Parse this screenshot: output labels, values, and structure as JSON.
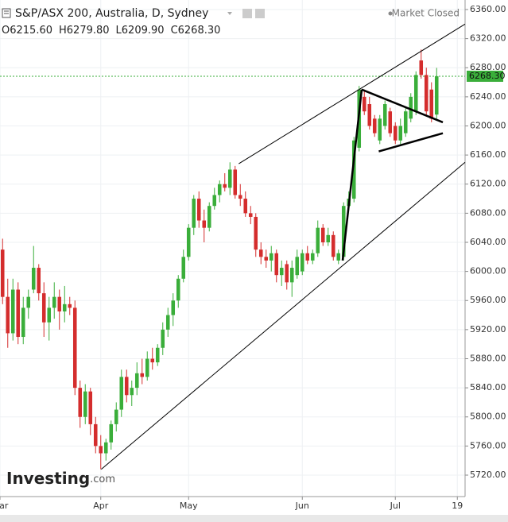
{
  "chart_data": {
    "type": "candlestick",
    "title": "S&P/ASX 200, Australia, D, Sydney",
    "status": "Market Closed",
    "ohlc_labels": [
      "O6215.60",
      "H6279.80",
      "L6209.90",
      "C6268.30"
    ],
    "logo": {
      "brand": "Investing",
      "suffix": ".com"
    },
    "up_color": "#3aae3a",
    "down_color": "#d42d2d",
    "grid": true,
    "xlim": [
      -0.5,
      89.5
    ],
    "xticks": [
      {
        "value": -0.5,
        "label": "Mar"
      },
      {
        "value": 19,
        "label": "Apr"
      },
      {
        "value": 36,
        "label": "May"
      },
      {
        "value": 58,
        "label": "Jun"
      },
      {
        "value": 76,
        "label": "Jul"
      },
      {
        "value": 88,
        "label": "19"
      }
    ],
    "ylim": [
      5690.5,
      6373.1
    ],
    "yticks": [
      {
        "value": 5720,
        "label": "5720.00"
      },
      {
        "value": 5760,
        "label": "5760.00"
      },
      {
        "value": 5800,
        "label": "5800.00"
      },
      {
        "value": 5840,
        "label": "5840.00"
      },
      {
        "value": 5880,
        "label": "5880.00"
      },
      {
        "value": 5920,
        "label": "5920.00"
      },
      {
        "value": 5960,
        "label": "5960.00"
      },
      {
        "value": 6000,
        "label": "6000.00"
      },
      {
        "value": 6040,
        "label": "6040.00"
      },
      {
        "value": 6080,
        "label": "6080.00"
      },
      {
        "value": 6120,
        "label": "6120.00"
      },
      {
        "value": 6160,
        "label": "6160.00"
      },
      {
        "value": 6200,
        "label": "6200.00"
      },
      {
        "value": 6240,
        "label": "6240.00"
      },
      {
        "value": 6280,
        "label": "6280.00"
      },
      {
        "value": 6320,
        "label": "6320.00"
      },
      {
        "value": 6360,
        "label": "6360.00"
      }
    ],
    "ohlc": {
      "open": [
        6030,
        5965,
        5915,
        5975,
        5910,
        5950,
        5975,
        6005,
        5970,
        5930,
        5950,
        5965,
        5945,
        5955,
        5950,
        5840,
        5800,
        5835,
        5790,
        5760,
        5750,
        5765,
        5790,
        5810,
        5855,
        5830,
        5840,
        5860,
        5855,
        5880,
        5875,
        5895,
        5920,
        5940,
        5960,
        5990,
        6020,
        6060,
        6100,
        6070,
        6060,
        6090,
        6105,
        6120,
        6115,
        6140,
        6105,
        6100,
        6080,
        6075,
        6030,
        6020,
        6015,
        6025,
        5995,
        6010,
        5985,
        5995,
        6000,
        6025,
        6015,
        6025,
        6060,
        6040,
        6050,
        6015,
        6020,
        6090,
        6100,
        6170,
        6240,
        6230,
        6210,
        6180,
        6200,
        6220,
        6200,
        6180,
        6190,
        6210,
        6220,
        6290,
        6270,
        6250,
        6215.6
      ],
      "high": [
        6045,
        5990,
        5990,
        5985,
        5965,
        5975,
        6035,
        6010,
        5985,
        5965,
        5985,
        5975,
        5980,
        5965,
        5960,
        5850,
        5845,
        5840,
        5800,
        5775,
        5770,
        5795,
        5820,
        5865,
        5865,
        5850,
        5875,
        5880,
        5890,
        5895,
        5900,
        5930,
        5950,
        5970,
        5995,
        6030,
        6065,
        6105,
        6110,
        6085,
        6095,
        6115,
        6125,
        6135,
        6150,
        6145,
        6120,
        6110,
        6090,
        6080,
        6040,
        6030,
        6035,
        6030,
        6015,
        6015,
        6015,
        6030,
        6030,
        6035,
        6030,
        6070,
        6065,
        6060,
        6055,
        6030,
        6095,
        6110,
        6185,
        6255,
        6250,
        6240,
        6215,
        6215,
        6235,
        6225,
        6205,
        6210,
        6225,
        6245,
        6275,
        6305,
        6280,
        6260,
        6279.8
      ],
      "low": [
        5955,
        5895,
        5905,
        5900,
        5900,
        5935,
        5970,
        5960,
        5910,
        5905,
        5935,
        5920,
        5930,
        5940,
        5830,
        5785,
        5790,
        5775,
        5750,
        5728,
        5740,
        5755,
        5780,
        5800,
        5820,
        5815,
        5830,
        5845,
        5850,
        5865,
        5870,
        5885,
        5910,
        5925,
        5950,
        5985,
        6015,
        6050,
        6060,
        6040,
        6055,
        6085,
        6095,
        6110,
        6105,
        6100,
        6090,
        6075,
        6065,
        6020,
        6010,
        6005,
        6000,
        5985,
        5980,
        5975,
        5965,
        5990,
        5995,
        6010,
        6010,
        6020,
        6035,
        6035,
        6015,
        6010,
        6015,
        6085,
        6095,
        6165,
        6215,
        6195,
        6185,
        6175,
        6195,
        6185,
        6175,
        6175,
        6185,
        6205,
        6215,
        6265,
        6215,
        6205,
        6209.9
      ],
      "close": [
        5965,
        5915,
        5975,
        5910,
        5950,
        5965,
        6005,
        5970,
        5930,
        5950,
        5965,
        5945,
        5955,
        5950,
        5840,
        5800,
        5835,
        5790,
        5760,
        5750,
        5765,
        5790,
        5810,
        5855,
        5830,
        5840,
        5860,
        5855,
        5880,
        5875,
        5895,
        5920,
        5940,
        5960,
        5990,
        6020,
        6060,
        6100,
        6070,
        6060,
        6090,
        6105,
        6120,
        6115,
        6140,
        6105,
        6100,
        6080,
        6075,
        6030,
        6020,
        6015,
        6025,
        5995,
        6005,
        5985,
        6005,
        6020,
        6025,
        6015,
        6025,
        6060,
        6040,
        6050,
        6020,
        6025,
        6090,
        6100,
        6180,
        6250,
        6220,
        6200,
        6190,
        6210,
        6230,
        6190,
        6180,
        6200,
        6220,
        6240,
        6270,
        6270,
        6220,
        6210,
        6268.3
      ]
    },
    "last_price": {
      "value": 6268.3,
      "label": "6268.30",
      "color": "#3aae3a"
    },
    "trendlines": [
      {
        "x": [
          45.7,
          89.5
        ],
        "y": [
          6148,
          6340
        ],
        "width": 1
      },
      {
        "x": [
          19.1,
          89.5
        ],
        "y": [
          5728,
          6150
        ],
        "width": 1
      },
      {
        "x": [
          65.8,
          69.5
        ],
        "y": [
          6015,
          6250
        ],
        "width": 2.5
      },
      {
        "x": [
          69.5,
          85.2
        ],
        "y": [
          6250,
          6205
        ],
        "width": 2.5
      },
      {
        "x": [
          72.8,
          85.2
        ],
        "y": [
          6165,
          6190
        ],
        "width": 2.5
      }
    ]
  }
}
